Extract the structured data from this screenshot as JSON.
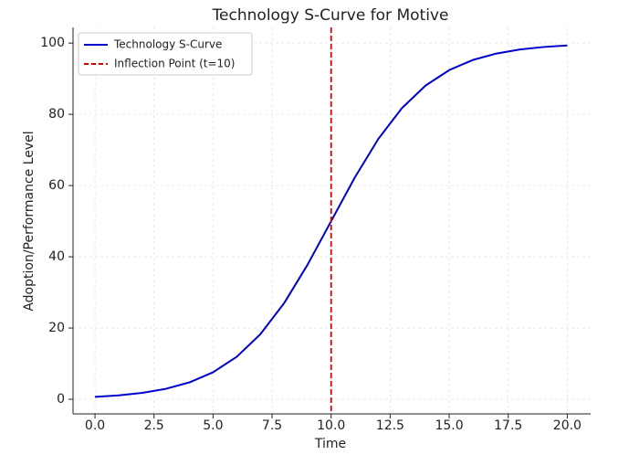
{
  "chart_data": {
    "type": "line",
    "title": "Technology S-Curve for Motive",
    "xlabel": "Time",
    "ylabel": "Adoption/Performance Level",
    "x": [
      0,
      1,
      2,
      3,
      4,
      5,
      6,
      7,
      8,
      9,
      10,
      11,
      12,
      13,
      14,
      15,
      16,
      17,
      18,
      19,
      20
    ],
    "series": [
      {
        "name": "Technology S-Curve",
        "color": "#0000cc",
        "values": [
          0.669,
          1.099,
          1.799,
          2.931,
          4.743,
          7.586,
          11.92,
          18.243,
          26.894,
          37.754,
          50,
          62.246,
          73.106,
          81.757,
          88.08,
          92.414,
          95.257,
          97.069,
          98.201,
          98.901,
          99.331
        ]
      }
    ],
    "vline": {
      "x": 10,
      "label": "Inflection Point (t=10)",
      "color": "#dd0000"
    },
    "xlim": [
      -0.93,
      20.99
    ],
    "ylim": [
      -4.1,
      104.4
    ],
    "xticks": [
      {
        "value": 0,
        "label": "0.0"
      },
      2.5,
      {
        "value": 5,
        "label": "5.0"
      },
      7.5,
      {
        "value": 10,
        "label": "10.0"
      },
      12.5,
      {
        "value": 15,
        "label": "15.0"
      },
      17.5,
      {
        "value": 20,
        "label": "20.0"
      }
    ],
    "yticks": [
      0,
      20,
      40,
      60,
      80,
      100
    ],
    "grid": true,
    "legend": "upper-left"
  }
}
